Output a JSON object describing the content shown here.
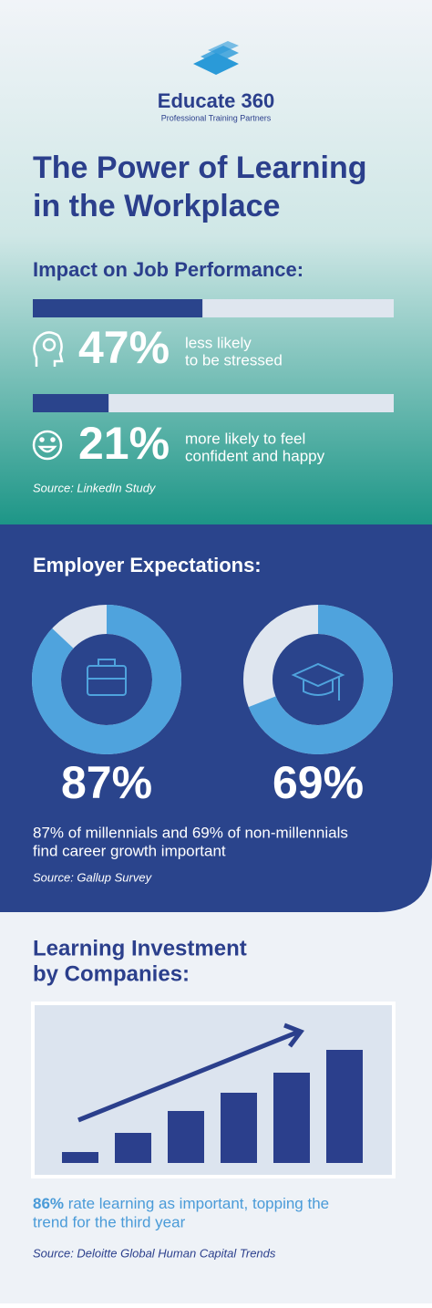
{
  "header": {
    "brand": "Educate 360",
    "tagline": "Professional Training Partners",
    "title_lines": [
      "The Power of Learning",
      "in the Workplace"
    ]
  },
  "impact": {
    "heading": "Impact on Job Performance:",
    "stats": [
      {
        "value": 47,
        "label": "47%",
        "text_lines": [
          "less likely",
          "to be stressed"
        ]
      },
      {
        "value": 21,
        "label": "21%",
        "text_lines": [
          "more likely to feel",
          "confident and happy"
        ]
      }
    ],
    "source": "Source: LinkedIn Study"
  },
  "expectations": {
    "heading": "Employer Expectations:",
    "stats": [
      {
        "value": 87,
        "label": "87%"
      },
      {
        "value": 69,
        "label": "69%"
      }
    ],
    "text_lines": [
      "87% of millennials and 69% of non-millennials",
      "find career growth important"
    ],
    "source": "Source: Gallup Survey"
  },
  "investment": {
    "heading_lines": [
      "Learning Investment",
      "by Companies:"
    ],
    "highlight": "86%",
    "text_lines": [
      "rate learning as important, topping the",
      "trend for the third year"
    ],
    "source": "Source: Deloitte Global Human Capital Trends"
  }
}
